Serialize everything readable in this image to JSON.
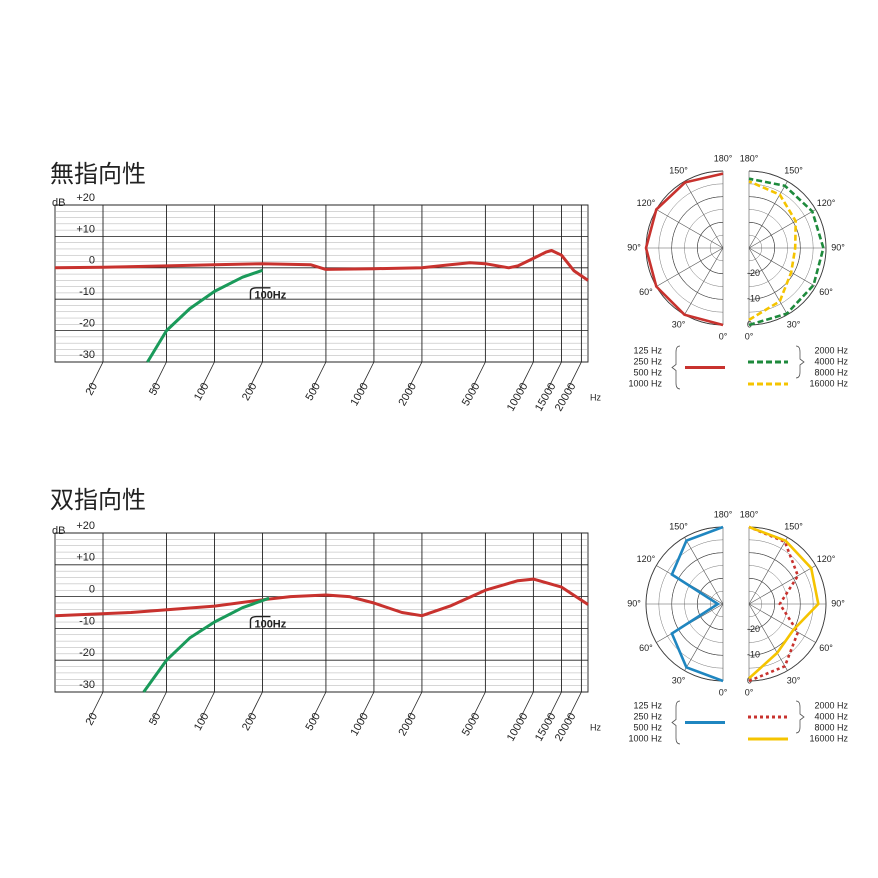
{
  "chart_data": [
    {
      "type": "line",
      "title": "無指向性",
      "y_label": "dB",
      "x_label": "Hz",
      "xscale": "log",
      "xlim": [
        10,
        22000
      ],
      "xticks": [
        20,
        50,
        100,
        200,
        500,
        1000,
        2000,
        5000,
        10000,
        15000,
        20000
      ],
      "ylim": [
        -30,
        20
      ],
      "yticks": [
        {
          "value": 20,
          "label": "+20"
        },
        {
          "value": 10,
          "label": "+10"
        },
        0,
        -10,
        -20,
        -30
      ],
      "grid": true,
      "annotation": "100Hz",
      "series": [
        {
          "color": "#c8322e",
          "x": [
            10,
            20,
            50,
            100,
            200,
            400,
            500,
            1000,
            2000,
            3000,
            4000,
            5000,
            7000,
            8000,
            10000,
            12000,
            13000,
            15000,
            18000,
            22000
          ],
          "values": [
            0,
            0.2,
            0.6,
            1,
            1.3,
            1,
            -0.5,
            -0.3,
            0,
            1,
            1.6,
            1.3,
            0,
            0.6,
            3,
            5,
            5.5,
            4,
            -1,
            -4
          ]
        },
        {
          "color": "#1a9a5a",
          "x": [
            38,
            50,
            70,
            100,
            150,
            200
          ],
          "values": [
            -30,
            -20,
            -13,
            -7.5,
            -3,
            -0.8
          ]
        }
      ]
    },
    {
      "type": "line",
      "title": "双指向性",
      "y_label": "dB",
      "x_label": "Hz",
      "xscale": "log",
      "xlim": [
        10,
        22000
      ],
      "xticks": [
        20,
        50,
        100,
        200,
        500,
        1000,
        2000,
        5000,
        10000,
        15000,
        20000
      ],
      "ylim": [
        -30,
        20
      ],
      "yticks": [
        {
          "value": 20,
          "label": "+20"
        },
        {
          "value": 10,
          "label": "+10"
        },
        0,
        -10,
        -20,
        -30
      ],
      "grid": true,
      "annotation": "100Hz",
      "series": [
        {
          "color": "#c8322e",
          "x": [
            10,
            30,
            100,
            200,
            300,
            500,
            700,
            1000,
            1500,
            2000,
            3000,
            5000,
            8000,
            10000,
            15000,
            22000
          ],
          "values": [
            -6,
            -5,
            -3,
            -1,
            0,
            0.5,
            0,
            -2,
            -5,
            -6,
            -3,
            2,
            5,
            5.5,
            3,
            -2.5
          ]
        },
        {
          "color": "#1a9a5a",
          "x": [
            36,
            50,
            70,
            100,
            150,
            220
          ],
          "values": [
            -30,
            -20,
            -13,
            -8,
            -3.5,
            -0.5
          ]
        }
      ]
    },
    {
      "type": "polar",
      "rlim": [
        -30,
        0
      ],
      "rticks": [
        -20,
        -10,
        0
      ],
      "angle_ticks": [
        {
          "value": 0,
          "label": "0°"
        },
        {
          "value": 30,
          "label": "30°"
        },
        {
          "value": 60,
          "label": "60°"
        },
        {
          "value": 90,
          "label": "90°"
        },
        {
          "value": 120,
          "label": "120°"
        },
        {
          "value": 150,
          "label": "150°"
        },
        {
          "value": 180,
          "label": "180°"
        }
      ],
      "series": [
        {
          "names": [
            "125 Hz",
            "250 Hz",
            "500 Hz",
            "1000 Hz"
          ],
          "color": "#c8322e",
          "dash": "solid",
          "side": "left",
          "angles": [
            0,
            30,
            60,
            90,
            120,
            150,
            180
          ],
          "values": [
            0,
            0,
            0,
            0,
            0,
            -0.5,
            -1
          ]
        },
        {
          "names": [
            "2000 Hz",
            "4000 Hz",
            "8000 Hz"
          ],
          "color": "#1e8a3c",
          "dash": "dashed",
          "side": "right",
          "angles": [
            0,
            30,
            60,
            90,
            120,
            150,
            180
          ],
          "values": [
            0,
            -0.5,
            -1,
            -1,
            -1.5,
            -2,
            -3
          ]
        },
        {
          "names": [
            "16000 Hz"
          ],
          "color": "#f5c400",
          "dash": "dashed",
          "side": "right",
          "angles": [
            0,
            30,
            60,
            90,
            120,
            150,
            180
          ],
          "values": [
            -2,
            -6,
            -11,
            -12,
            -9,
            -6,
            -4
          ]
        }
      ]
    },
    {
      "type": "polar",
      "rlim": [
        -30,
        0
      ],
      "rticks": [
        -20,
        -10,
        0
      ],
      "angle_ticks": [
        {
          "value": 0,
          "label": "0°"
        },
        {
          "value": 30,
          "label": "30°"
        },
        {
          "value": 60,
          "label": "60°"
        },
        {
          "value": 90,
          "label": "90°"
        },
        {
          "value": 120,
          "label": "120°"
        },
        {
          "value": 150,
          "label": "150°"
        },
        {
          "value": 180,
          "label": "180°"
        }
      ],
      "series": [
        {
          "names": [
            "125 Hz",
            "250 Hz",
            "500 Hz",
            "1000 Hz"
          ],
          "color": "#1f86c0",
          "dash": "solid",
          "side": "left",
          "angles": [
            0,
            30,
            60,
            90,
            120,
            150,
            180
          ],
          "values": [
            0,
            -1.5,
            -7,
            -28,
            -7,
            -1.5,
            0
          ]
        },
        {
          "names": [
            "2000 Hz",
            "4000 Hz",
            "8000 Hz"
          ],
          "color": "#c8322e",
          "dash": "dotted",
          "side": "right",
          "angles": [
            0,
            30,
            60,
            90,
            120,
            150,
            180
          ],
          "values": [
            0,
            -2,
            -8,
            -18,
            -8,
            -2,
            0
          ]
        },
        {
          "names": [
            "16000 Hz"
          ],
          "color": "#f5c400",
          "dash": "solid",
          "side": "right",
          "angles": [
            0,
            30,
            60,
            90,
            120,
            150,
            180
          ],
          "values": [
            -1,
            -8,
            -10,
            -3,
            -2,
            -1.5,
            0
          ]
        }
      ]
    }
  ]
}
